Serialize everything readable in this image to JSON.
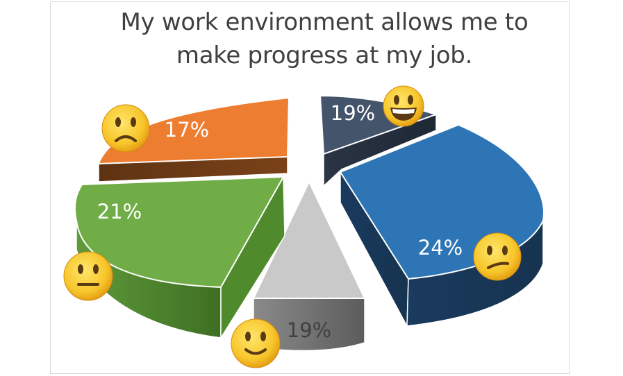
{
  "chart_data": {
    "type": "pie",
    "title_lines": [
      "My work environment allows me to",
      "make progress at my job."
    ],
    "slices": [
      {
        "value": 19,
        "label": "19%",
        "emoji": "grinning-face",
        "color": "#44546a",
        "label_color": "#ffffff"
      },
      {
        "value": 24,
        "label": "24%",
        "emoji": "confused-face",
        "color": "#2e75b6",
        "label_color": "#ffffff"
      },
      {
        "value": 19,
        "label": "19%",
        "emoji": "slightly-smiling-face",
        "color": "#c9c9c9",
        "label_color": "#404040"
      },
      {
        "value": 21,
        "label": "21%",
        "emoji": "neutral-face",
        "color": "#70ad47",
        "label_color": "#ffffff"
      },
      {
        "value": 17,
        "label": "17%",
        "emoji": "frowning-face",
        "color": "#ed7d31",
        "label_color": "#ffffff"
      }
    ],
    "exploded": true,
    "style": "3d",
    "legend": "none"
  }
}
